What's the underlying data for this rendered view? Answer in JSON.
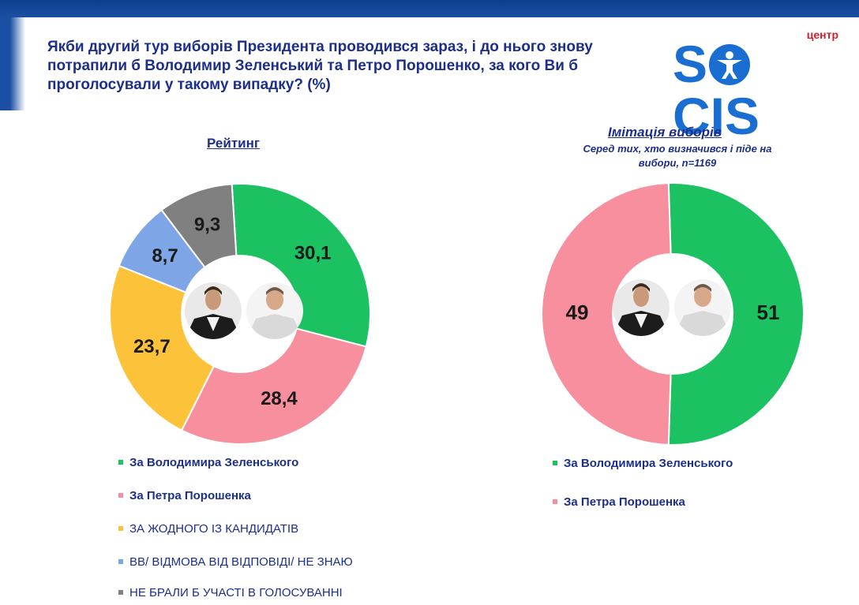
{
  "title": "Якби другий тур виборів Президента проводився зараз, і до нього знову потрапили б Володимир Зеленський та Петро Порошенко, за кого Ви б проголосували у такому випадку? (%)",
  "logo": {
    "small": "центр",
    "main_left": "S",
    "main_right": "CIS"
  },
  "colors": {
    "green": "#1cc262",
    "pink": "#f78f9e",
    "yellow": "#fcc23a",
    "blue": "#7ea5e6",
    "gray": "#808080",
    "dark_blue": "#1c2f8a"
  },
  "chart_data": [
    {
      "type": "pie",
      "title": "Рейтинг",
      "categories": [
        "За Володимира Зеленського",
        "За Петра Порошенка",
        "ЗА ЖОДНОГО ІЗ КАНДИДАТІВ",
        "ВВ/ ВІДМОВА ВІД ВІДПОВІДІ/ НЕ ЗНАЮ",
        "НЕ БРАЛИ Б УЧАСТІ В ГОЛОСУВАННІ"
      ],
      "values": [
        30.1,
        28.4,
        23.7,
        8.7,
        9.3
      ],
      "value_labels": [
        "30,1",
        "28,4",
        "23,7",
        "8,7",
        "9,3"
      ],
      "colors": [
        "#1cc262",
        "#f78f9e",
        "#fcc23a",
        "#7ea5e6",
        "#808080"
      ],
      "legend": [
        "За Володимира Зеленського",
        "За Петра Порошенка",
        "ЗА ЖОДНОГО ІЗ КАНДИДАТІВ",
        "ВВ/ ВІДМОВА ВІД ВІДПОВІДІ/ НЕ ЗНАЮ",
        "НЕ БРАЛИ Б УЧАСТІ В ГОЛОСУВАННІ"
      ]
    },
    {
      "type": "pie",
      "title": "Імітація виборів",
      "subtitle": "Серед тих, хто визначився і піде на вибори, n=1169",
      "categories": [
        "За Володимира Зеленського",
        "За Петра Порошенка"
      ],
      "values": [
        51,
        49
      ],
      "value_labels": [
        "51",
        "49"
      ],
      "colors": [
        "#1cc262",
        "#f78f9e"
      ],
      "legend": [
        "За Володимира Зеленського",
        "За Петра Порошенка"
      ]
    }
  ]
}
